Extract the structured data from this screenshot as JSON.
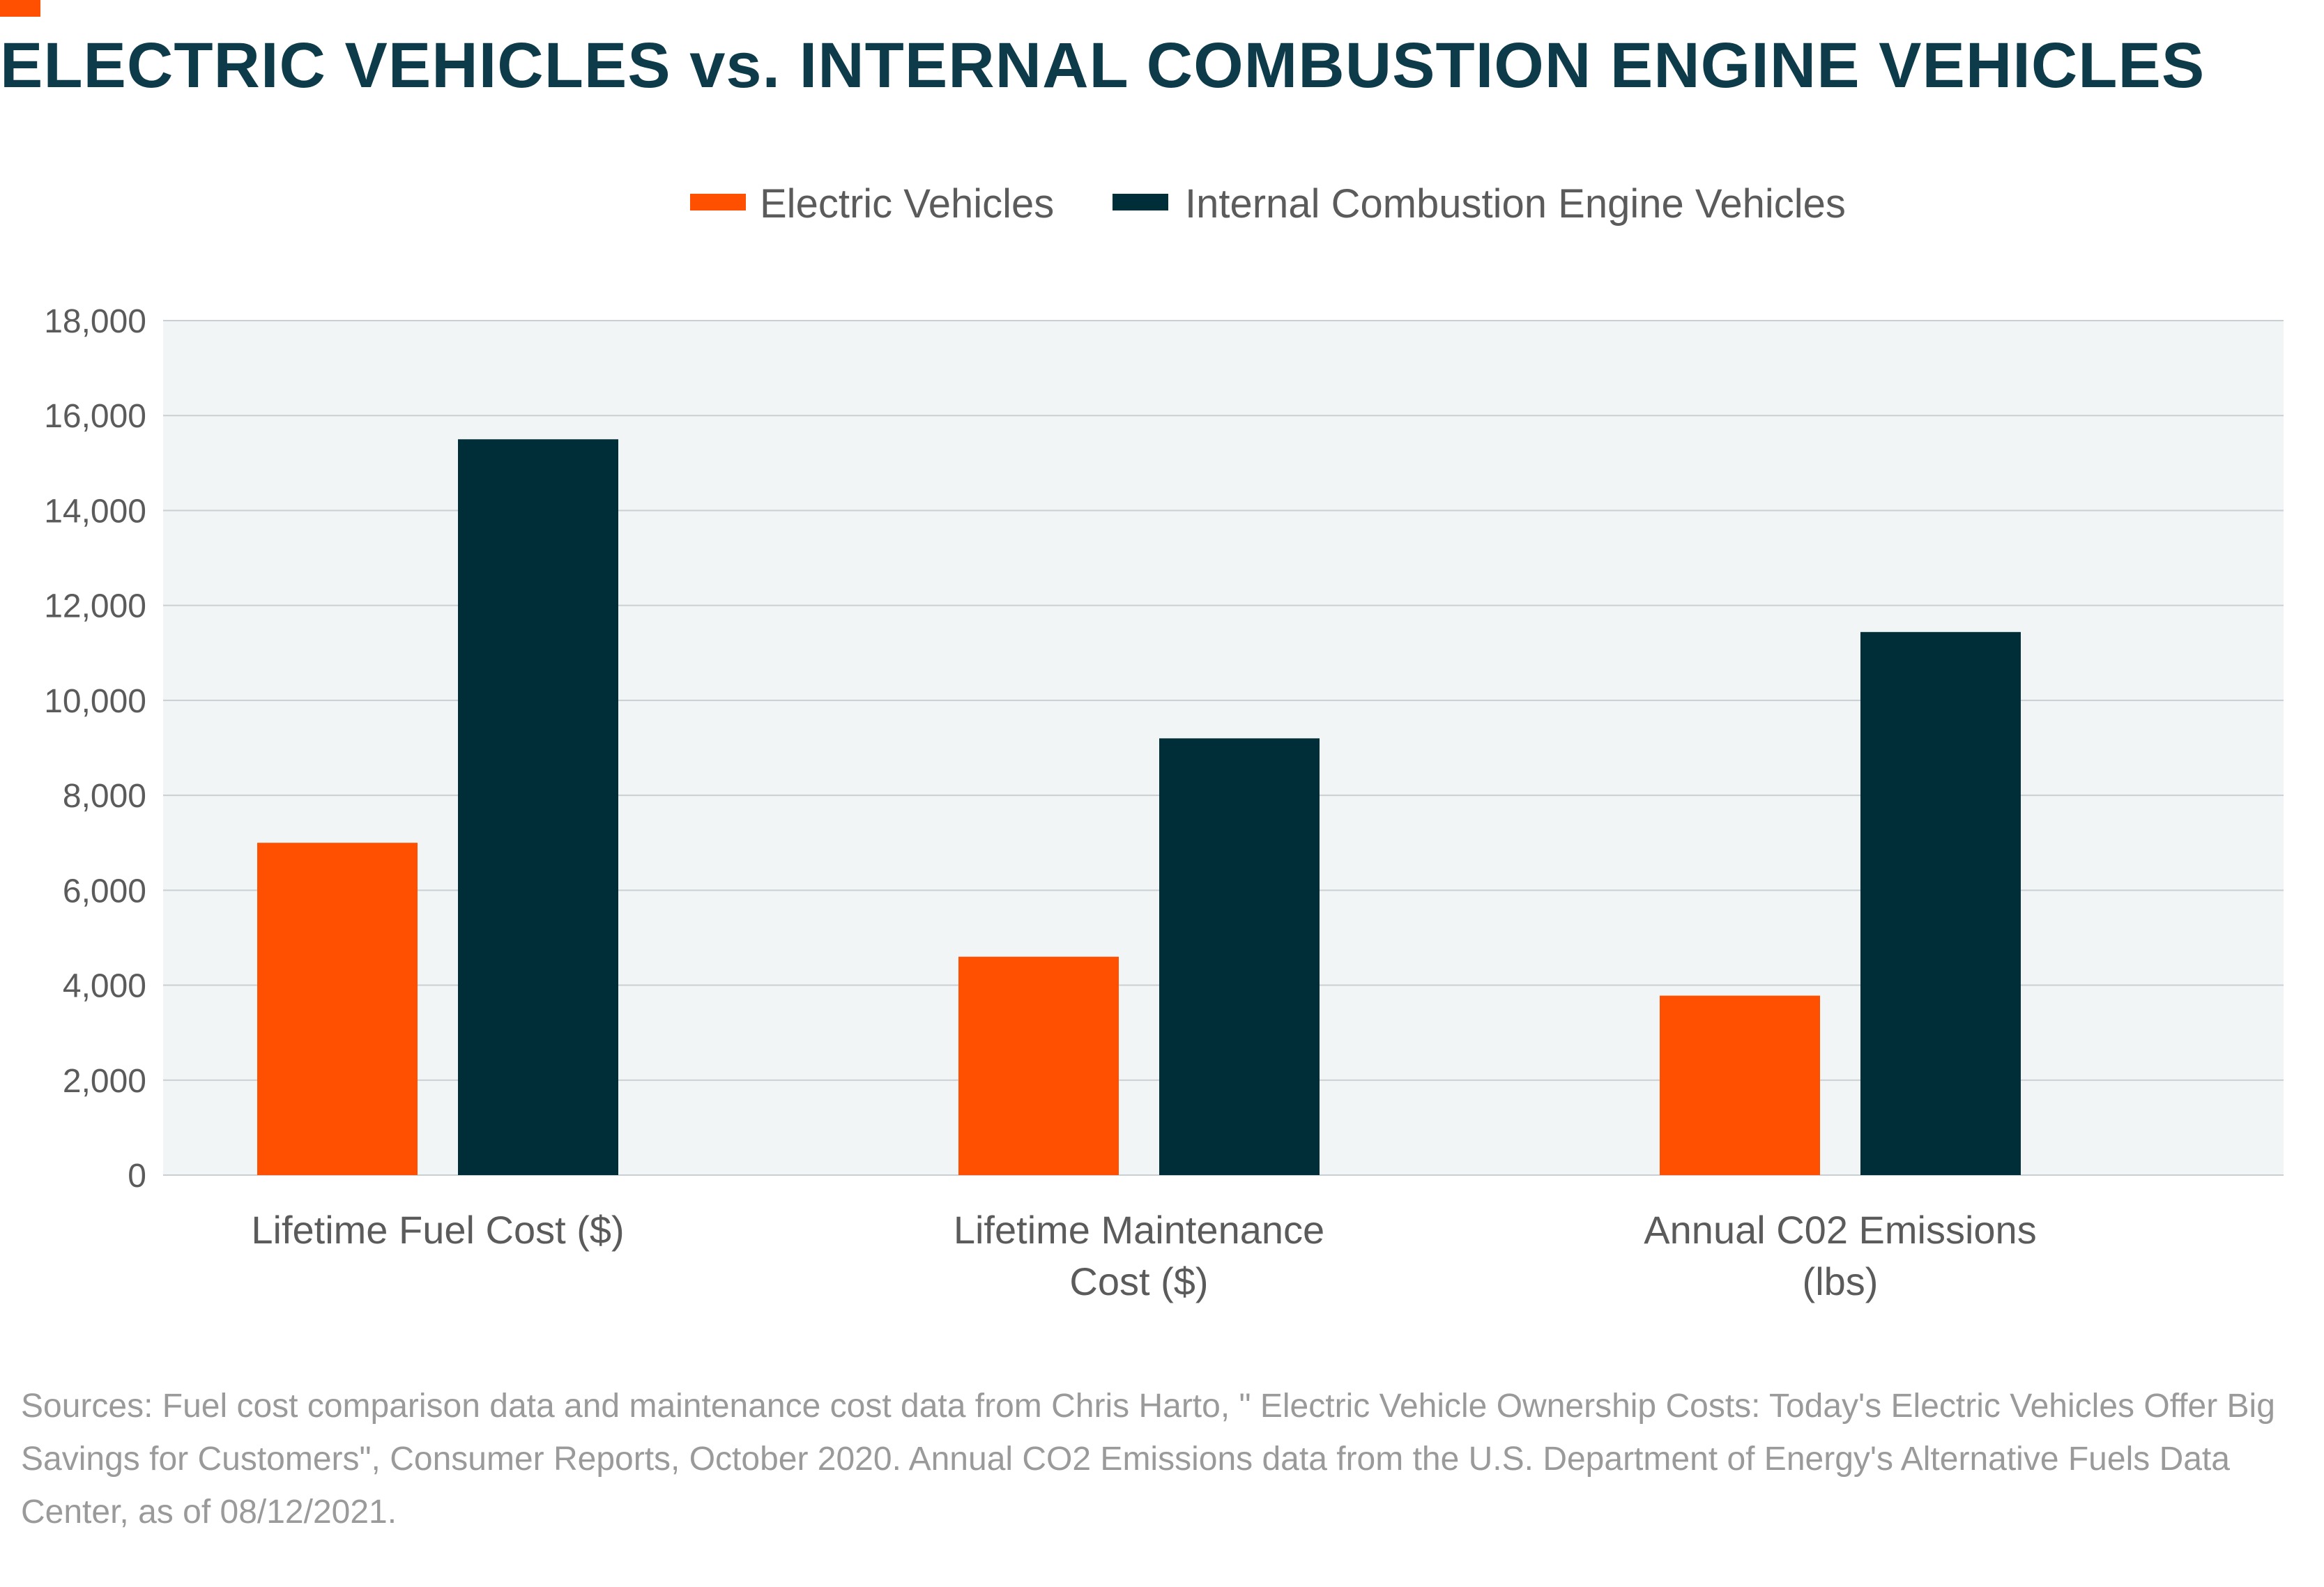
{
  "colors": {
    "accent": "#fe5000",
    "title": "#0d3b4a",
    "ev": "#fe5000",
    "ice": "#002e38",
    "plot_bg": "#f2f5f6",
    "grid": "#c9cfd2",
    "text": "#5b5b5b",
    "sources": "#9a9a9a"
  },
  "title": "ELECTRIC VEHICLES vs. INTERNAL COMBUSTION ENGINE VEHICLES",
  "sources": "Sources: Fuel cost comparison data and maintenance cost data from Chris Harto, \" Electric Vehicle Ownership Costs: Today's Electric Vehicles Offer Big Savings for Customers\", Consumer Reports, October 2020. Annual CO2 Emissions data from the U.S. Department of Energy's Alternative Fuels Data Center, as of 08/12/2021.",
  "chart_data": {
    "type": "bar",
    "categories": [
      [
        "Lifetime Fuel Cost ($)"
      ],
      [
        "Lifetime Maintenance",
        "Cost ($)"
      ],
      [
        "Annual C02 Emissions",
        "(lbs)"
      ]
    ],
    "series": [
      {
        "name": "Electric Vehicles",
        "color": "#fe5000",
        "values": [
          7000,
          4600,
          3780
        ]
      },
      {
        "name": "Internal Combustion Engine Vehicles",
        "color": "#002e38",
        "values": [
          15500,
          9200,
          11440
        ]
      }
    ],
    "ylim": [
      0,
      18000
    ],
    "yticks": [
      0,
      2000,
      4000,
      6000,
      8000,
      10000,
      12000,
      14000,
      16000,
      18000
    ],
    "ytick_labels": [
      "0",
      "2,000",
      "4,000",
      "6,000",
      "8,000",
      "10,000",
      "12,000",
      "14,000",
      "16,000",
      "18,000"
    ],
    "grid": true,
    "legend_position": "top-center"
  }
}
